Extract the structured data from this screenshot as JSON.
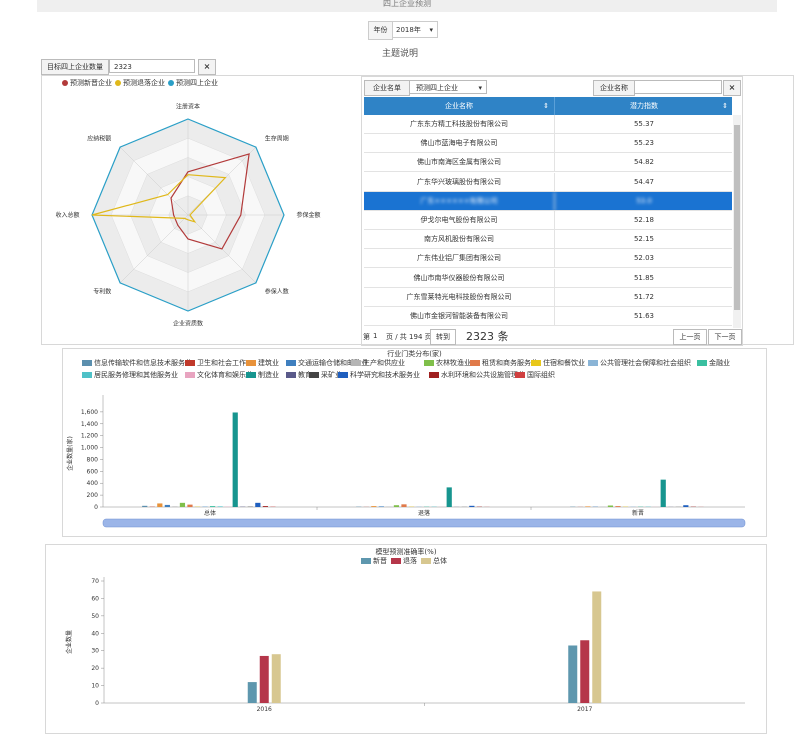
{
  "header": {
    "title": "四上企业预测"
  },
  "filters": {
    "year_label": "年份",
    "year_value": "2018年",
    "subject_title": "主题说明"
  },
  "target": {
    "label": "目标四上企业数量",
    "value": "2323",
    "clear": "×"
  },
  "radar": {
    "legend": [
      {
        "name": "预测新晋企业",
        "color": "#b23a3a"
      },
      {
        "name": "预测退落企业",
        "color": "#e0b81a"
      },
      {
        "name": "预测四上企业",
        "color": "#2a9fc7"
      }
    ],
    "axes": [
      "注册资本",
      "生存周期",
      "参保金额",
      "参保人数",
      "企业资质数",
      "专利数",
      "收入总额",
      "应纳税额"
    ],
    "series": [
      {
        "name": "预测新晋企业",
        "values": [
          0.45,
          0.9,
          0.55,
          0.5,
          0.25,
          0.15,
          0.15,
          0.25
        ]
      },
      {
        "name": "预测退落企业",
        "values": [
          0.42,
          0.55,
          0.02,
          0.1,
          0.05,
          0.05,
          1.0,
          0.3
        ]
      },
      {
        "name": "预测四上企业",
        "values": [
          1,
          1,
          1,
          1,
          1,
          1,
          1,
          1
        ]
      }
    ]
  },
  "table": {
    "list_label": "企业名单",
    "list_value": "预测四上企业",
    "name_label": "企业名称",
    "name_value": "",
    "clear": "×",
    "col_name": "企业名称",
    "col_score": "潜力指数",
    "rows": [
      {
        "name": "广东东方精工科技股份有限公司",
        "score": "55.37"
      },
      {
        "name": "佛山市蓝海电子有限公司",
        "score": "55.23"
      },
      {
        "name": "佛山市南海区金属有限公司",
        "score": "54.82"
      },
      {
        "name": "广东华兴玻璃股份有限公司",
        "score": "54.47"
      },
      {
        "name": "广东××××××有限公司",
        "score": "53.0"
      },
      {
        "name": "伊戈尔电气股份有限公司",
        "score": "52.18"
      },
      {
        "name": "南方风机股份有限公司",
        "score": "52.15"
      },
      {
        "name": "广东伟业铝厂集团有限公司",
        "score": "52.03"
      },
      {
        "name": "佛山市南华仪器股份有限公司",
        "score": "51.85"
      },
      {
        "name": "广东雪莱特光电科技股份有限公司",
        "score": "51.72"
      },
      {
        "name": "佛山市金银河智能装备有限公司",
        "score": "51.63"
      }
    ],
    "pager": {
      "first": "第",
      "page": "1",
      "total_text": "页 / 共 194 页",
      "go": "转到",
      "count": "2323 条",
      "prev": "上一页",
      "next": "下一页"
    }
  },
  "chart_data": [
    {
      "type": "bar",
      "title": "行业门类分布(家)",
      "ylabel": "企业数量(家)",
      "categories": [
        "总体",
        "退落",
        "新晋"
      ],
      "ylim": [
        0,
        1800
      ],
      "yticks": [
        0,
        200,
        400,
        600,
        800,
        1000,
        1200,
        1400,
        1600
      ],
      "ytick_labels": [
        "0",
        "200",
        "400",
        "600",
        "800",
        "1,000",
        "1,200",
        "1,400",
        "1,600"
      ],
      "series": [
        {
          "name": "信息传输软件和信息技术服务业",
          "color": "#5b8fae",
          "values": [
            20,
            5,
            5
          ]
        },
        {
          "name": "卫生和社会工作",
          "color": "#c0392b",
          "values": [
            5,
            2,
            2
          ]
        },
        {
          "name": "建筑业",
          "color": "#e8923a",
          "values": [
            60,
            15,
            10
          ]
        },
        {
          "name": "交通运输仓储和邮政业",
          "color": "#3f7fbf",
          "values": [
            35,
            10,
            5
          ]
        },
        {
          "name": "生产和供应业",
          "color": "#b5b5b5",
          "values": [
            10,
            5,
            5
          ]
        },
        {
          "name": "农林牧渔业",
          "color": "#7fbf4a",
          "values": [
            70,
            30,
            25
          ]
        },
        {
          "name": "租赁和商务服务业",
          "color": "#e07a4a",
          "values": [
            40,
            45,
            15
          ]
        },
        {
          "name": "住宿和餐饮业",
          "color": "#e8c71a",
          "values": [
            5,
            5,
            5
          ]
        },
        {
          "name": "公共管理社会保障和社会组织",
          "color": "#8ab4d6",
          "values": [
            10,
            5,
            5
          ]
        },
        {
          "name": "金融业",
          "color": "#3abfa0",
          "values": [
            15,
            5,
            5
          ]
        },
        {
          "name": "居民服务修理和其他服务业",
          "color": "#4fc1c7",
          "values": [
            10,
            5,
            5
          ]
        },
        {
          "name": "文化体育和娱乐业",
          "color": "#e8a4c0",
          "values": [
            5,
            2,
            2
          ]
        },
        {
          "name": "制造业",
          "color": "#17958f",
          "values": [
            1590,
            330,
            460
          ]
        },
        {
          "name": "教育",
          "color": "#5a5a8a",
          "values": [
            5,
            2,
            2
          ]
        },
        {
          "name": "采矿业",
          "color": "#444444",
          "values": [
            5,
            2,
            2
          ]
        },
        {
          "name": "科学研究和技术服务业",
          "color": "#1f5fbf",
          "values": [
            70,
            20,
            30
          ]
        },
        {
          "name": "水利环境和公共设施管理业",
          "color": "#a02020",
          "values": [
            15,
            5,
            5
          ]
        },
        {
          "name": "国际组织",
          "color": "#d04040",
          "values": [
            5,
            2,
            2
          ]
        }
      ]
    },
    {
      "type": "bar",
      "title": "模型预测准确率(%)",
      "ylabel": "企业数量",
      "categories": [
        "2016",
        "2017"
      ],
      "ylim": [
        0,
        70
      ],
      "yticks": [
        0,
        10,
        20,
        30,
        40,
        50,
        60,
        70
      ],
      "series": [
        {
          "name": "新晋",
          "color": "#5e97ae",
          "values": [
            12,
            33
          ]
        },
        {
          "name": "退落",
          "color": "#b5364a",
          "values": [
            27,
            36
          ]
        },
        {
          "name": "总体",
          "color": "#d7c790",
          "values": [
            28,
            64
          ]
        }
      ]
    }
  ]
}
